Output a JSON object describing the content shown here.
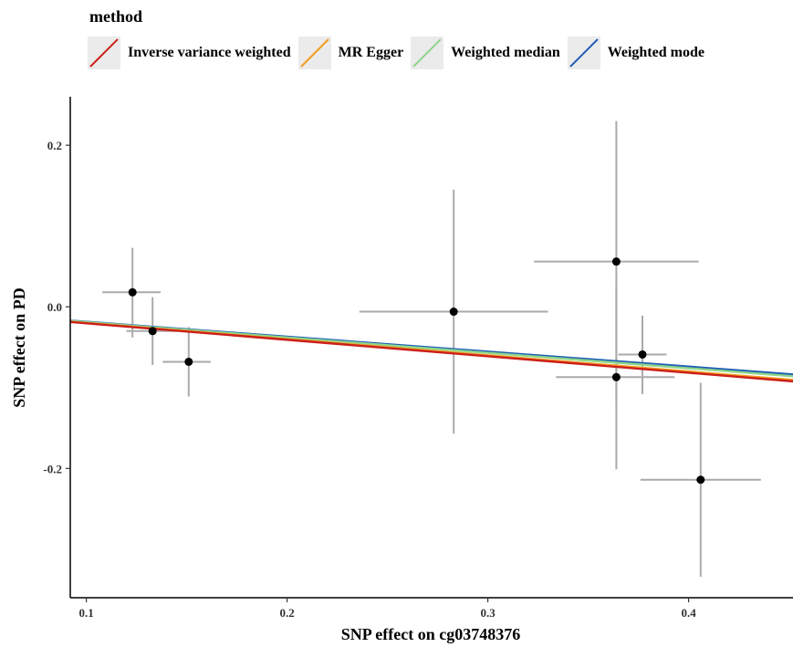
{
  "chart_data": {
    "type": "scatter",
    "xlabel": "SNP effect on cg03748376",
    "ylabel": "SNP effect on PD",
    "xlim": [
      0.092,
      0.452
    ],
    "ylim": [
      -0.36,
      0.26
    ],
    "x_ticks": [
      0.1,
      0.2,
      0.3,
      0.4
    ],
    "x_tick_labels": [
      "0.1",
      "0.2",
      "0.3",
      "0.4"
    ],
    "y_ticks": [
      0.2,
      0.0,
      -0.2
    ],
    "y_tick_labels": [
      "0.2",
      "0.0",
      "-0.2"
    ],
    "grid": false,
    "legend_title": "method",
    "legend_position": "top",
    "points": [
      {
        "x": 0.123,
        "y": 0.018,
        "x_lo": 0.108,
        "x_hi": 0.137,
        "y_lo": -0.038,
        "y_hi": 0.073
      },
      {
        "x": 0.133,
        "y": -0.03,
        "x_lo": 0.12,
        "x_hi": 0.145,
        "y_lo": -0.072,
        "y_hi": 0.012
      },
      {
        "x": 0.151,
        "y": -0.068,
        "x_lo": 0.138,
        "x_hi": 0.162,
        "y_lo": -0.111,
        "y_hi": -0.025
      },
      {
        "x": 0.283,
        "y": -0.006,
        "x_lo": 0.236,
        "x_hi": 0.33,
        "y_lo": -0.157,
        "y_hi": 0.145
      },
      {
        "x": 0.364,
        "y": 0.056,
        "x_lo": 0.323,
        "x_hi": 0.405,
        "y_lo": -0.118,
        "y_hi": 0.23
      },
      {
        "x": 0.364,
        "y": -0.087,
        "x_lo": 0.334,
        "x_hi": 0.393,
        "y_lo": -0.201,
        "y_hi": 0.027
      },
      {
        "x": 0.377,
        "y": -0.059,
        "x_lo": 0.365,
        "x_hi": 0.389,
        "y_lo": -0.108,
        "y_hi": -0.011
      },
      {
        "x": 0.406,
        "y": -0.214,
        "x_lo": 0.376,
        "x_hi": 0.436,
        "y_lo": -0.334,
        "y_hi": -0.094
      }
    ],
    "series": [
      {
        "name": "Inverse variance weighted",
        "color": "#cc1f1a",
        "slope": -0.204,
        "intercept": 0.0
      },
      {
        "name": "MR Egger",
        "color": "#f39c1f",
        "slope": -0.2,
        "intercept": 0.0
      },
      {
        "name": "Weighted median",
        "color": "#8fd68a",
        "slope": -0.19,
        "intercept": 0.0
      },
      {
        "name": "Weighted mode",
        "color": "#1f5fb5",
        "slope": -0.185,
        "intercept": 0.0
      }
    ],
    "point_color": "#000000",
    "errorbar_color": "#aaaaaa"
  }
}
